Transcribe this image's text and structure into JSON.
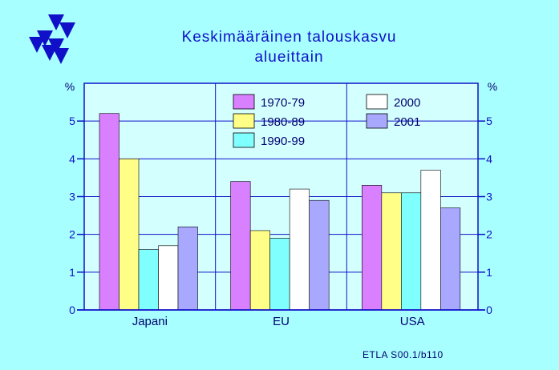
{
  "page": {
    "title_line1": "Keskimääräinen  talouskasvu",
    "title_line2": "alueittain",
    "footer": "ETLA S00.1/b110",
    "logo": "etla-logo-icon",
    "colors": {
      "background": "#a8ffff",
      "plot_area": "#d4ffff",
      "axis": "#1010c8",
      "title": "#1010c8"
    }
  },
  "chart_data": {
    "type": "bar",
    "title": "Keskimääräinen  talouskasvu alueittain",
    "xlabel": "",
    "ylabel": "%",
    "ylim": [
      0,
      6
    ],
    "yticks": [
      0,
      1,
      2,
      3,
      4,
      5
    ],
    "grid": true,
    "legend_position": "top-right",
    "categories": [
      "Japani",
      "EU",
      "USA"
    ],
    "series": [
      {
        "name": "1970-79",
        "color": "#d880ff",
        "values": [
          5.2,
          3.4,
          3.3
        ]
      },
      {
        "name": "1980-89",
        "color": "#ffff88",
        "values": [
          4.0,
          2.1,
          3.1
        ]
      },
      {
        "name": "1990-99",
        "color": "#80ffff",
        "values": [
          1.6,
          1.9,
          3.1
        ]
      },
      {
        "name": "2000",
        "color": "#ffffff",
        "values": [
          1.7,
          3.2,
          3.7
        ]
      },
      {
        "name": "2001",
        "color": "#a8a8ff",
        "values": [
          2.2,
          2.9,
          2.7
        ]
      }
    ]
  }
}
